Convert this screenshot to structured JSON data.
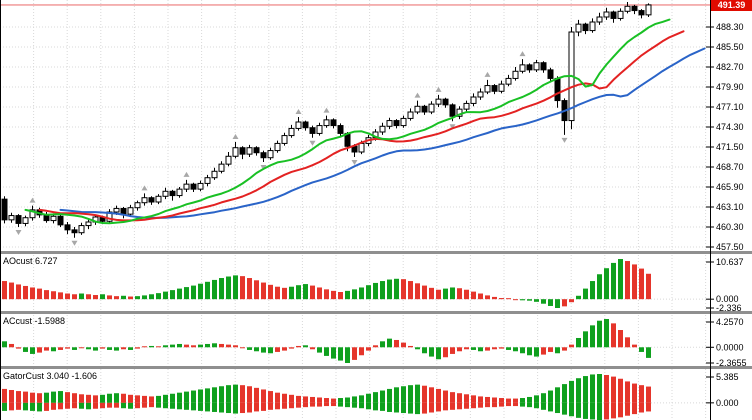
{
  "colors": {
    "background": "#ffffff",
    "grid": "#d8d8d8",
    "axis_line": "#000000",
    "separator": "#8f8f8f",
    "bull_candle_fill": "#ffffff",
    "bear_candle_fill": "#000000",
    "candle_outline": "#000000",
    "fractal_arrow": "#a8a8a8",
    "current_price_line": "#f2a2a2",
    "current_price_tag_bg": "#e00b00",
    "histogram_up": "#0fa01e",
    "histogram_down": "#e5352b",
    "alligator_jaw": "#2a64c8",
    "alligator_teeth": "#e32222",
    "alligator_lips": "#19c024"
  },
  "chart_data": {
    "type": "candlestick",
    "style": "metatrader-chart-with-alligator-fractals-and-oscillators",
    "price_axis": {
      "current_price": 491.39,
      "current_price_label": "491.39",
      "tick_labels": [
        "488.30",
        "485.50",
        "482.70",
        "479.90",
        "477.10",
        "474.30",
        "471.50",
        "468.70",
        "465.90",
        "463.10",
        "460.30",
        "457.50"
      ],
      "tick_interval": 2.8
    },
    "candles": [
      [
        464.2,
        464.6,
        460.8,
        461.3
      ],
      [
        461.3,
        462.3,
        460.9,
        461.9
      ],
      [
        461.9,
        462.1,
        460.3,
        460.8
      ],
      [
        460.8,
        461.9,
        460.4,
        461.6
      ],
      [
        461.6,
        463.3,
        461.2,
        462.7
      ],
      [
        462.7,
        463.0,
        461.6,
        462.0
      ],
      [
        462.0,
        462.4,
        460.9,
        461.2
      ],
      [
        461.2,
        462.2,
        460.8,
        461.8
      ],
      [
        461.8,
        462.0,
        460.3,
        460.6
      ],
      [
        460.6,
        461.0,
        459.3,
        459.9
      ],
      [
        459.9,
        460.3,
        458.8,
        459.5
      ],
      [
        459.5,
        460.9,
        459.2,
        460.5
      ],
      [
        460.5,
        461.4,
        460.0,
        461.0
      ],
      [
        461.0,
        462.0,
        460.6,
        461.7
      ],
      [
        461.7,
        461.9,
        460.7,
        461.1
      ],
      [
        461.1,
        462.8,
        460.9,
        462.4
      ],
      [
        462.4,
        463.3,
        462.0,
        462.9
      ],
      [
        462.9,
        463.1,
        461.5,
        462.1
      ],
      [
        462.1,
        463.4,
        461.8,
        463.0
      ],
      [
        463.0,
        464.0,
        462.6,
        463.7
      ],
      [
        463.7,
        465.0,
        463.3,
        464.4
      ],
      [
        464.4,
        464.6,
        463.4,
        463.8
      ],
      [
        463.8,
        464.9,
        463.5,
        464.6
      ],
      [
        464.6,
        465.8,
        464.2,
        465.3
      ],
      [
        465.3,
        465.5,
        464.0,
        464.7
      ],
      [
        464.7,
        465.9,
        464.4,
        465.6
      ],
      [
        465.6,
        466.9,
        465.2,
        466.3
      ],
      [
        466.3,
        466.5,
        465.2,
        465.6
      ],
      [
        465.6,
        466.8,
        465.3,
        466.4
      ],
      [
        466.4,
        467.6,
        466.0,
        467.2
      ],
      [
        467.2,
        468.6,
        466.9,
        468.1
      ],
      [
        468.1,
        469.5,
        467.8,
        469.1
      ],
      [
        469.1,
        470.8,
        468.8,
        470.2
      ],
      [
        470.2,
        472.2,
        469.9,
        471.4
      ],
      [
        471.4,
        471.6,
        469.8,
        470.5
      ],
      [
        470.5,
        471.8,
        470.1,
        471.4
      ],
      [
        471.4,
        471.6,
        470.3,
        470.7
      ],
      [
        470.7,
        471.0,
        469.4,
        470.0
      ],
      [
        470.0,
        471.4,
        469.7,
        471.0
      ],
      [
        471.0,
        472.4,
        470.7,
        472.0
      ],
      [
        472.0,
        473.5,
        471.7,
        473.1
      ],
      [
        473.1,
        474.6,
        472.8,
        474.1
      ],
      [
        474.1,
        475.7,
        473.8,
        475.0
      ],
      [
        475.0,
        475.2,
        473.8,
        474.2
      ],
      [
        474.2,
        474.5,
        472.8,
        473.4
      ],
      [
        473.4,
        474.9,
        473.1,
        474.5
      ],
      [
        474.5,
        475.9,
        474.2,
        475.3
      ],
      [
        475.3,
        475.5,
        474.1,
        474.5
      ],
      [
        474.5,
        474.8,
        473.0,
        473.4
      ],
      [
        473.4,
        473.6,
        470.9,
        471.6
      ],
      [
        471.6,
        471.9,
        470.1,
        470.8
      ],
      [
        470.8,
        472.4,
        470.5,
        472.0
      ],
      [
        472.0,
        473.2,
        471.6,
        472.8
      ],
      [
        472.8,
        474.0,
        472.4,
        473.6
      ],
      [
        473.6,
        474.9,
        473.2,
        474.4
      ],
      [
        474.4,
        475.6,
        474.0,
        475.2
      ],
      [
        475.2,
        475.4,
        474.1,
        474.5
      ],
      [
        474.5,
        475.9,
        474.2,
        475.5
      ],
      [
        475.5,
        476.9,
        475.2,
        476.4
      ],
      [
        476.4,
        478.0,
        476.1,
        477.2
      ],
      [
        477.2,
        477.4,
        476.0,
        476.4
      ],
      [
        476.4,
        477.9,
        476.1,
        477.5
      ],
      [
        477.5,
        478.8,
        477.1,
        478.2
      ],
      [
        478.2,
        478.4,
        477.0,
        477.4
      ],
      [
        477.4,
        477.6,
        475.1,
        475.8
      ],
      [
        475.8,
        477.2,
        475.4,
        476.8
      ],
      [
        476.8,
        478.0,
        476.4,
        477.6
      ],
      [
        477.6,
        479.0,
        477.2,
        478.5
      ],
      [
        478.5,
        479.7,
        478.1,
        479.2
      ],
      [
        479.2,
        480.9,
        478.9,
        480.1
      ],
      [
        480.1,
        480.3,
        478.9,
        479.3
      ],
      [
        479.3,
        480.8,
        479.0,
        480.3
      ],
      [
        480.3,
        481.6,
        480.0,
        481.1
      ],
      [
        481.1,
        482.7,
        480.8,
        482.1
      ],
      [
        482.1,
        483.8,
        481.8,
        483.0
      ],
      [
        483.0,
        483.2,
        481.9,
        482.3
      ],
      [
        482.3,
        483.7,
        482.0,
        483.3
      ],
      [
        483.3,
        483.5,
        481.9,
        482.3
      ],
      [
        482.3,
        482.6,
        480.7,
        481.1
      ],
      [
        481.1,
        481.4,
        477.0,
        478.0
      ],
      [
        478.0,
        478.3,
        473.2,
        475.2
      ],
      [
        475.2,
        488.3,
        474.0,
        487.6
      ],
      [
        487.6,
        489.3,
        487.0,
        488.7
      ],
      [
        488.7,
        488.9,
        487.3,
        487.8
      ],
      [
        487.8,
        489.5,
        487.5,
        489.0
      ],
      [
        489.0,
        490.3,
        488.6,
        489.7
      ],
      [
        489.7,
        491.0,
        489.3,
        490.4
      ],
      [
        490.4,
        490.6,
        488.9,
        489.5
      ],
      [
        489.5,
        490.9,
        489.2,
        490.5
      ],
      [
        490.5,
        491.8,
        490.2,
        491.2
      ],
      [
        491.2,
        491.4,
        490.1,
        490.6
      ],
      [
        490.6,
        490.8,
        489.5,
        490.0
      ],
      [
        490.0,
        491.6,
        489.7,
        491.39
      ]
    ],
    "overlays": {
      "alligator": {
        "jaw": {
          "period": 13,
          "shift": 8,
          "color": "#2a64c8"
        },
        "teeth": {
          "period": 8,
          "shift": 5,
          "color": "#e32222"
        },
        "lips": {
          "period": 5,
          "shift": 3,
          "color": "#19c024"
        }
      },
      "fractals": {
        "color": "#a8a8a8"
      }
    },
    "indicator_panels": [
      {
        "id": "ao",
        "label": "AOcust 6.727",
        "current_value": 6.727,
        "axis_labels": {
          "max": "10.637",
          "zero": "0.000",
          "min": "-2.336"
        },
        "range": {
          "max": 10.637,
          "min": -2.336
        },
        "prev_seed": 5.2,
        "values": [
          4.8,
          4.4,
          3.9,
          3.5,
          3.1,
          2.8,
          2.4,
          2.1,
          1.8,
          1.5,
          1.3,
          1.5,
          1.3,
          1.1,
          1.3,
          1.0,
          0.8,
          0.9,
          0.7,
          0.8,
          1.0,
          1.3,
          1.6,
          2.0,
          2.4,
          2.8,
          3.2,
          3.6,
          4.1,
          4.6,
          5.1,
          5.6,
          6.0,
          6.3,
          6.1,
          5.6,
          5.0,
          4.4,
          3.8,
          3.3,
          3.0,
          3.3,
          3.7,
          4.0,
          3.6,
          3.1,
          2.6,
          2.2,
          1.9,
          2.2,
          2.6,
          3.1,
          3.7,
          4.3,
          4.8,
          5.2,
          5.4,
          5.3,
          4.8,
          4.2,
          3.6,
          3.0,
          2.5,
          2.8,
          3.1,
          2.9,
          2.5,
          2.0,
          1.5,
          1.0,
          0.6,
          0.3,
          0.1,
          -0.1,
          -0.3,
          -0.4,
          -0.7,
          -1.2,
          -1.8,
          -2.336,
          -1.9,
          -0.8,
          0.9,
          2.8,
          4.8,
          6.6,
          8.2,
          9.6,
          10.637,
          10.1,
          9.2,
          8.1,
          6.727
        ]
      },
      {
        "id": "ac",
        "label": "ACcust -1.5988",
        "current_value": -1.5988,
        "axis_labels": {
          "max": "4.2570",
          "zero": "0.0000",
          "min": "-2.3655"
        },
        "range": {
          "max": 4.257,
          "min": -2.3655
        },
        "prev_seed": 0.5,
        "values": [
          0.9,
          0.5,
          -0.2,
          -0.7,
          -1.0,
          -0.8,
          -0.5,
          -0.6,
          -0.4,
          -0.2,
          -0.4,
          -0.1,
          -0.3,
          -0.5,
          -0.2,
          -0.4,
          -0.5,
          -0.3,
          -0.4,
          -0.2,
          0.1,
          0.2,
          0.1,
          0.3,
          0.4,
          0.5,
          0.4,
          0.3,
          0.4,
          0.5,
          0.6,
          0.5,
          0.4,
          0.3,
          -0.1,
          -0.4,
          -0.6,
          -0.8,
          -0.9,
          -0.7,
          -0.5,
          -0.2,
          0.2,
          0.3,
          -0.3,
          -0.8,
          -1.3,
          -1.7,
          -2.0,
          -2.3655,
          -1.9,
          -1.2,
          -0.5,
          0.3,
          0.9,
          1.3,
          1.1,
          0.7,
          0.2,
          -0.3,
          -0.9,
          -1.4,
          -1.8,
          -1.5,
          -1.0,
          -0.6,
          -0.3,
          -0.4,
          -0.6,
          -0.5,
          -0.3,
          -0.2,
          -0.4,
          -0.6,
          -0.9,
          -1.2,
          -1.4,
          -1.1,
          -0.7,
          -0.9,
          -0.5,
          0.4,
          1.4,
          2.4,
          3.3,
          4.0,
          4.257,
          3.6,
          2.6,
          1.5,
          0.4,
          -0.7,
          -1.5988
        ]
      },
      {
        "id": "gator",
        "label": "GatorCust 3.040 -1.606",
        "current_value_top": 3.04,
        "current_value_bottom": -1.606,
        "axis_labels": {
          "max": "5.385",
          "zero": "0.000"
        },
        "range": {
          "max": 5.385,
          "min": -3.2
        },
        "prev_seed_top": 2.8,
        "prev_seed_bottom": -1.4,
        "values_top": [
          2.6,
          2.4,
          2.2,
          2.1,
          1.9,
          1.8,
          1.9,
          2.1,
          2.2,
          2.0,
          1.8,
          1.6,
          1.5,
          1.4,
          1.5,
          1.7,
          1.8,
          1.7,
          1.5,
          1.4,
          1.3,
          1.2,
          1.3,
          1.5,
          1.7,
          1.9,
          2.1,
          2.3,
          2.5,
          2.7,
          2.9,
          3.1,
          3.3,
          3.4,
          3.3,
          3.1,
          2.8,
          2.5,
          2.2,
          1.9,
          1.7,
          1.5,
          1.3,
          1.2,
          1.1,
          1.0,
          0.9,
          0.8,
          0.9,
          1.0,
          1.2,
          1.4,
          1.7,
          2.0,
          2.3,
          2.6,
          2.9,
          3.1,
          3.3,
          3.4,
          3.2,
          2.9,
          2.6,
          2.3,
          2.0,
          1.8,
          1.6,
          1.4,
          1.2,
          1.1,
          1.0,
          0.9,
          0.8,
          0.8,
          0.9,
          1.1,
          1.4,
          1.8,
          2.3,
          2.9,
          3.5,
          4.1,
          4.6,
          5.0,
          5.3,
          5.385,
          5.2,
          4.9,
          4.5,
          4.0,
          3.6,
          3.3,
          3.04
        ],
        "values_bottom": [
          -1.5,
          -1.4,
          -1.3,
          -1.4,
          -1.5,
          -1.6,
          -1.5,
          -1.3,
          -1.2,
          -1.1,
          -1.0,
          -1.1,
          -1.2,
          -1.1,
          -1.0,
          -0.9,
          -0.9,
          -1.0,
          -1.1,
          -1.0,
          -0.9,
          -0.8,
          -0.9,
          -1.0,
          -1.1,
          -1.2,
          -1.3,
          -1.4,
          -1.5,
          -1.6,
          -1.7,
          -1.8,
          -1.9,
          -2.0,
          -1.9,
          -1.8,
          -1.6,
          -1.5,
          -1.3,
          -1.2,
          -1.1,
          -1.0,
          -0.9,
          -0.8,
          -0.7,
          -0.7,
          -0.6,
          -0.6,
          -0.7,
          -0.8,
          -0.9,
          -1.0,
          -1.2,
          -1.4,
          -1.5,
          -1.7,
          -1.8,
          -1.9,
          -2.0,
          -2.1,
          -2.0,
          -1.8,
          -1.6,
          -1.4,
          -1.3,
          -1.2,
          -1.1,
          -1.0,
          -0.9,
          -0.8,
          -0.8,
          -0.7,
          -0.6,
          -0.6,
          -0.7,
          -0.8,
          -1.0,
          -1.3,
          -1.6,
          -1.9,
          -2.2,
          -2.5,
          -2.8,
          -3.0,
          -3.1,
          -3.2,
          -3.1,
          -2.9,
          -2.7,
          -2.4,
          -2.1,
          -1.8,
          -1.606
        ]
      }
    ]
  }
}
